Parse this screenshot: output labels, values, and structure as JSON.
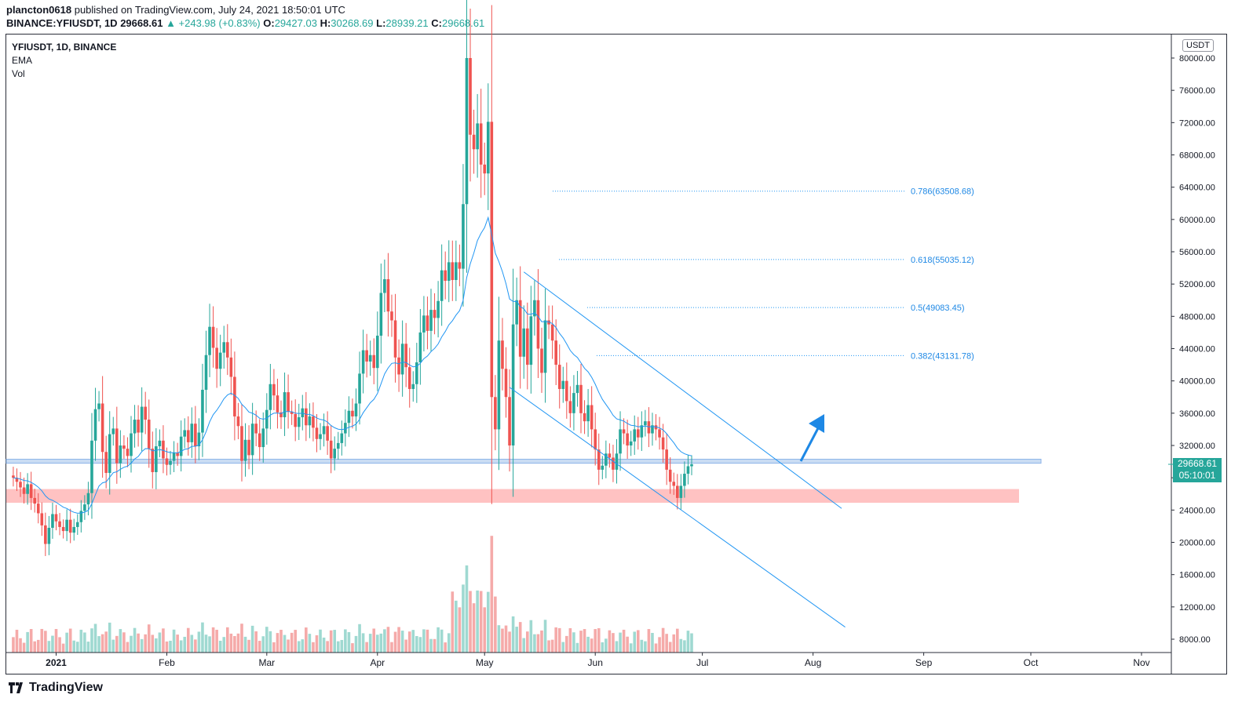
{
  "header": {
    "publisher": "plancton0618",
    "published_text": "published on TradingView.com, July 24, 2021 18:50:01 UTC",
    "symbol": "BINANCE:YFIUSDT, 1D",
    "last": "29668.61",
    "change": "▲ +243.98 (+0.83%)",
    "o_label": "O:",
    "o_value": "29427.03",
    "h_label": "H:",
    "h_value": "30268.69",
    "l_label": "L:",
    "l_value": "28939.21",
    "c_label": "C:",
    "c_value": "29668.61"
  },
  "legend": {
    "title": "YFIUSDT, 1D, BINANCE",
    "ema": "EMA",
    "vol": "Vol"
  },
  "price_axis": {
    "unit": "USDT",
    "current_price": "29668.61",
    "countdown": "05:10:01"
  },
  "footer": {
    "brand": "TradingView"
  },
  "colors": {
    "up": "#26a69a",
    "down": "#ef5350",
    "ema": "#2196f3",
    "support_zone": "#ffcdd2",
    "resistance_zone": "#bbdefb"
  },
  "chart_data": {
    "type": "candlestick",
    "title": "YFIUSDT, 1D, BINANCE",
    "ylim": [
      6000,
      84500
    ],
    "y_ticks": [
      "80000.00",
      "76000.00",
      "72000.00",
      "68000.00",
      "64000.00",
      "60000.00",
      "56000.00",
      "52000.00",
      "48000.00",
      "44000.00",
      "40000.00",
      "36000.00",
      "32000.00",
      "28000.00",
      "24000.00",
      "20000.00",
      "16000.00",
      "12000.00",
      "8000.00"
    ],
    "x_labels": [
      {
        "label": "2021",
        "day": 0
      },
      {
        "label": "Feb",
        "day": 31
      },
      {
        "label": "Mar",
        "day": 59
      },
      {
        "label": "Apr",
        "day": 90
      },
      {
        "label": "May",
        "day": 120
      },
      {
        "label": "Jun",
        "day": 151
      },
      {
        "label": "Jul",
        "day": 181
      },
      {
        "label": "Aug",
        "day": 212
      },
      {
        "label": "Sep",
        "day": 243
      },
      {
        "label": "Oct",
        "day": 273
      },
      {
        "label": "Nov",
        "day": 304
      }
    ],
    "first_day": -12,
    "closes": [
      28000,
      27500,
      26800,
      26000,
      27200,
      25500,
      24800,
      23600,
      22100,
      19800,
      21800,
      23500,
      22600,
      21900,
      21400,
      22800,
      21200,
      21900,
      22500,
      23900,
      24700,
      26100,
      32600,
      36500,
      37200,
      31200,
      28600,
      33400,
      34100,
      29800,
      32000,
      31600,
      30700,
      33500,
      35200,
      33600,
      36800,
      35200,
      31600,
      28700,
      31900,
      32600,
      30400,
      29600,
      30100,
      31100,
      30700,
      33100,
      33900,
      32400,
      34700,
      31900,
      33600,
      38900,
      43200,
      46700,
      44100,
      41500,
      43500,
      44800,
      42900,
      40500,
      35600,
      34400,
      30100,
      32700,
      30800,
      34700,
      33500,
      31800,
      34100,
      36400,
      39600,
      38200,
      36100,
      35500,
      38600,
      36200,
      35900,
      34300,
      35500,
      36600,
      34500,
      35600,
      34200,
      32800,
      33400,
      34400,
      32600,
      30400,
      31600,
      32300,
      33500,
      34800,
      36300,
      35600,
      37200,
      40900,
      43800,
      42400,
      43200,
      41600,
      45600,
      50900,
      52600,
      48600,
      47500,
      42900,
      40800,
      44600,
      41700,
      39000,
      39600,
      42300,
      46000,
      48100,
      46200,
      48800,
      47800,
      49900,
      53700,
      52400,
      54700,
      52500,
      54700,
      53900,
      61900,
      80000,
      70500,
      68700,
      71900,
      66800,
      65700,
      72100,
      38000,
      34000,
      45000,
      41500,
      38000,
      32000,
      47000,
      50000,
      43000,
      46500,
      42000,
      48000,
      50000,
      44000,
      41000,
      47500,
      47000,
      45000,
      42000,
      39000,
      40000,
      37500,
      36000,
      38500,
      39500,
      36000,
      35000,
      37000,
      34000,
      31500,
      29000,
      29500,
      31000,
      30500,
      29000,
      31000,
      34000,
      33500,
      32000,
      32500,
      34000,
      33000,
      34500,
      35000,
      33500,
      34500,
      34000,
      33000,
      31500,
      29000,
      27500,
      27000,
      25500,
      27000,
      28500,
      29427,
      29668
    ],
    "series": [
      {
        "name": "YFIUSDT",
        "type": "candle"
      },
      {
        "name": "EMA",
        "type": "line"
      },
      {
        "name": "Vol",
        "type": "volume"
      }
    ],
    "fib_levels": [
      {
        "label": "0.786(63508.68)",
        "value": 63508.68
      },
      {
        "label": "0.618(55035.12)",
        "value": 55035.12
      },
      {
        "label": "0.5(49083.45)",
        "value": 49083.45
      },
      {
        "label": "0.382(43131.78)",
        "value": 43131.78
      }
    ],
    "support_zone": [
      24900,
      26600
    ],
    "resistance_zone": [
      29800,
      30300
    ]
  }
}
